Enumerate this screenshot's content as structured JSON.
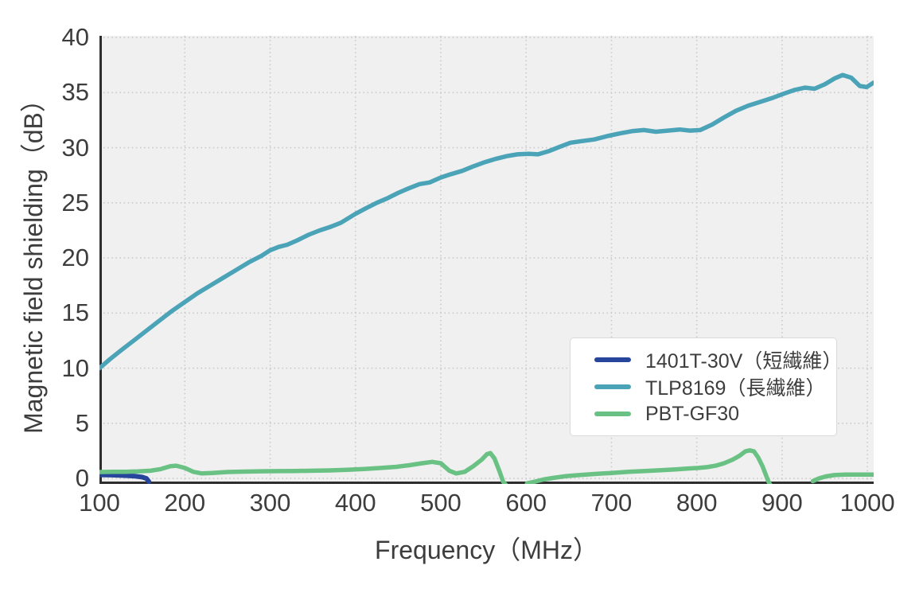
{
  "figure": {
    "background": "#ffffff",
    "plot_background": "#f0f0f0",
    "grid_color": "#c9c9c9",
    "spine_color": "#2e2e2e",
    "text_color": "#3d3d3d",
    "legend_border_color": "#d9d9d9",
    "legend_background": "#ffffff"
  },
  "chart_data": {
    "type": "line",
    "title": "",
    "xlabel": "Frequency（MHz）",
    "ylabel": "Magnetic field shielding（dB）",
    "xlim": [
      100,
      1007.3
    ],
    "ylim": [
      -0.5,
      40.15
    ],
    "x_ticks": [
      100,
      200,
      300,
      400,
      500,
      600,
      700,
      800,
      900,
      1000
    ],
    "y_ticks": [
      0,
      5,
      10,
      15,
      20,
      25,
      30,
      35,
      40
    ],
    "grid": true,
    "grid_style": "dotted",
    "legend_position": "inside lower-right",
    "series": [
      {
        "name": "1401T-30V（短繊維）",
        "color": "#27459b",
        "line_width": 6,
        "segments": [
          [
            [
              100,
              0.32
            ],
            [
              115,
              0.3
            ],
            [
              130,
              0.26
            ],
            [
              142,
              0.2
            ],
            [
              150,
              0.12
            ],
            [
              155,
              0.0
            ],
            [
              158,
              -0.3
            ]
          ]
        ]
      },
      {
        "name": "TLP8169（長繊維）",
        "color": "#4ba3b8",
        "line_width": 5.5,
        "segments": [
          [
            [
              100,
              10.0
            ],
            [
              112,
              10.8
            ],
            [
              125,
              11.6
            ],
            [
              140,
              12.5
            ],
            [
              155,
              13.4
            ],
            [
              170,
              14.3
            ],
            [
              185,
              15.2
            ],
            [
              200,
              16.0
            ],
            [
              215,
              16.8
            ],
            [
              230,
              17.5
            ],
            [
              245,
              18.2
            ],
            [
              260,
              18.9
            ],
            [
              275,
              19.6
            ],
            [
              290,
              20.2
            ],
            [
              300,
              20.7
            ],
            [
              310,
              21.0
            ],
            [
              320,
              21.2
            ],
            [
              332,
              21.6
            ],
            [
              345,
              22.1
            ],
            [
              358,
              22.5
            ],
            [
              370,
              22.8
            ],
            [
              383,
              23.2
            ],
            [
              400,
              24.0
            ],
            [
              412,
              24.5
            ],
            [
              425,
              25.0
            ],
            [
              437,
              25.4
            ],
            [
              450,
              25.9
            ],
            [
              462,
              26.3
            ],
            [
              475,
              26.7
            ],
            [
              487,
              26.85
            ],
            [
              500,
              27.3
            ],
            [
              512,
              27.6
            ],
            [
              525,
              27.9
            ],
            [
              538,
              28.3
            ],
            [
              552,
              28.7
            ],
            [
              565,
              29.0
            ],
            [
              578,
              29.25
            ],
            [
              590,
              29.4
            ],
            [
              603,
              29.45
            ],
            [
              614,
              29.4
            ],
            [
              627,
              29.7
            ],
            [
              640,
              30.1
            ],
            [
              652,
              30.45
            ],
            [
              665,
              30.6
            ],
            [
              680,
              30.75
            ],
            [
              695,
              31.05
            ],
            [
              710,
              31.3
            ],
            [
              724,
              31.5
            ],
            [
              738,
              31.6
            ],
            [
              752,
              31.45
            ],
            [
              766,
              31.55
            ],
            [
              780,
              31.65
            ],
            [
              792,
              31.55
            ],
            [
              804,
              31.6
            ],
            [
              818,
              32.1
            ],
            [
              832,
              32.75
            ],
            [
              846,
              33.35
            ],
            [
              860,
              33.8
            ],
            [
              874,
              34.15
            ],
            [
              888,
              34.5
            ],
            [
              902,
              34.9
            ],
            [
              915,
              35.25
            ],
            [
              927,
              35.45
            ],
            [
              938,
              35.35
            ],
            [
              950,
              35.75
            ],
            [
              962,
              36.3
            ],
            [
              971,
              36.6
            ],
            [
              981,
              36.35
            ],
            [
              991,
              35.6
            ],
            [
              999,
              35.5
            ],
            [
              1007,
              35.9
            ]
          ]
        ]
      },
      {
        "name": "PBT-GF30",
        "color": "#69c183",
        "line_width": 5.5,
        "segments": [
          [
            [
              100,
              0.58
            ],
            [
              115,
              0.6
            ],
            [
              130,
              0.6
            ],
            [
              145,
              0.63
            ],
            [
              160,
              0.7
            ],
            [
              172,
              0.85
            ],
            [
              183,
              1.1
            ],
            [
              190,
              1.15
            ],
            [
              200,
              0.95
            ],
            [
              210,
              0.6
            ],
            [
              220,
              0.45
            ],
            [
              232,
              0.5
            ],
            [
              250,
              0.58
            ],
            [
              270,
              0.62
            ],
            [
              290,
              0.65
            ],
            [
              310,
              0.66
            ],
            [
              330,
              0.68
            ],
            [
              350,
              0.7
            ],
            [
              370,
              0.73
            ],
            [
              390,
              0.78
            ],
            [
              410,
              0.85
            ],
            [
              430,
              0.95
            ],
            [
              448,
              1.05
            ],
            [
              463,
              1.2
            ],
            [
              478,
              1.38
            ],
            [
              490,
              1.5
            ],
            [
              500,
              1.38
            ],
            [
              510,
              0.7
            ],
            [
              518,
              0.45
            ],
            [
              528,
              0.6
            ],
            [
              538,
              1.1
            ],
            [
              548,
              1.7
            ],
            [
              554,
              2.2
            ],
            [
              558,
              2.3
            ],
            [
              563,
              1.8
            ],
            [
              569,
              0.6
            ],
            [
              573,
              -0.3
            ],
            [
              576,
              -0.55
            ]
          ],
          [
            [
              601,
              -0.45
            ],
            [
              610,
              -0.3
            ],
            [
              620,
              -0.1
            ],
            [
              632,
              0.05
            ],
            [
              646,
              0.2
            ],
            [
              662,
              0.3
            ],
            [
              680,
              0.4
            ],
            [
              700,
              0.5
            ],
            [
              720,
              0.6
            ],
            [
              740,
              0.67
            ],
            [
              758,
              0.74
            ],
            [
              775,
              0.82
            ],
            [
              790,
              0.9
            ],
            [
              802,
              0.95
            ],
            [
              812,
              1.02
            ],
            [
              822,
              1.15
            ],
            [
              832,
              1.38
            ],
            [
              842,
              1.7
            ],
            [
              850,
              2.05
            ],
            [
              857,
              2.45
            ],
            [
              862,
              2.55
            ],
            [
              867,
              2.45
            ],
            [
              872,
              1.9
            ],
            [
              877,
              1.1
            ],
            [
              881,
              0.3
            ],
            [
              884,
              -0.3
            ],
            [
              886,
              -0.55
            ]
          ],
          [
            [
              936,
              -0.25
            ],
            [
              943,
              0.0
            ],
            [
              951,
              0.18
            ],
            [
              961,
              0.3
            ],
            [
              974,
              0.35
            ],
            [
              990,
              0.35
            ],
            [
              1007,
              0.35
            ]
          ]
        ]
      }
    ]
  }
}
